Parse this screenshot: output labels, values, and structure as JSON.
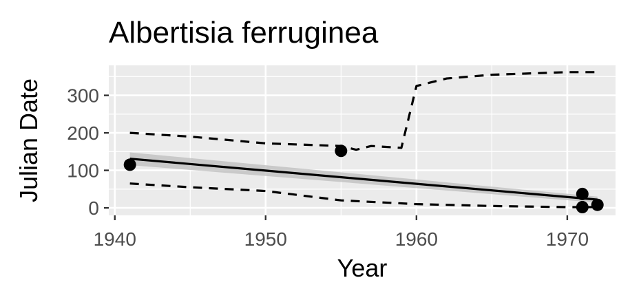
{
  "chart_data": {
    "type": "line",
    "title": "Albertisia ferruginea",
    "xlabel": "Year",
    "ylabel": "Julian Date",
    "xlim": [
      1939.6,
      1973.2
    ],
    "ylim": [
      -20,
      380
    ],
    "x_ticks": [
      1940,
      1950,
      1960,
      1970
    ],
    "y_ticks": [
      0,
      100,
      200,
      300
    ],
    "x_tick_labels": [
      "1940",
      "1950",
      "1960",
      "1970"
    ],
    "y_tick_labels": [
      "0",
      "100",
      "200",
      "300"
    ],
    "grid": true,
    "legend": "none",
    "points": {
      "x": [
        1941,
        1955,
        1971,
        1971,
        1972
      ],
      "y": [
        115,
        152,
        37,
        2,
        8
      ]
    },
    "trend_line": {
      "x": [
        1941,
        1972
      ],
      "y": [
        131,
        22
      ]
    },
    "trend_band": {
      "x": [
        1941,
        1972
      ],
      "upper": [
        148,
        30
      ],
      "lower": [
        114,
        14
      ]
    },
    "upper_dashed": {
      "x": [
        1941,
        1945,
        1950,
        1955,
        1956,
        1957,
        1959,
        1960,
        1962,
        1965,
        1970,
        1972
      ],
      "y": [
        200,
        190,
        172,
        165,
        155,
        165,
        160,
        325,
        345,
        355,
        362,
        362
      ]
    },
    "lower_dashed": {
      "x": [
        1941,
        1945,
        1950,
        1955,
        1960,
        1965,
        1970,
        1972
      ],
      "y": [
        65,
        55,
        45,
        20,
        10,
        5,
        2,
        2
      ]
    }
  },
  "colors": {
    "panel_bg": "#ebebeb",
    "grid": "#ffffff",
    "line": "#000000",
    "band": "#bdbdbd",
    "tick_text": "#4d4d4d"
  }
}
